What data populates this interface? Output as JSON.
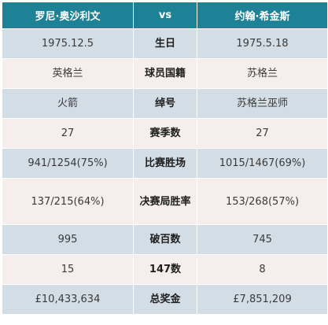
{
  "header": {
    "left": "罗尼·奥沙利文",
    "mid": "vs",
    "right": "约翰·希金斯"
  },
  "rows": [
    {
      "left": "1975.12.5",
      "label": "生日",
      "right": "1975.5.18"
    },
    {
      "left": "英格兰",
      "label": "球员国籍",
      "right": "苏格兰"
    },
    {
      "left": "火箭",
      "label": "绰号",
      "right": "苏格兰巫师"
    },
    {
      "left": "27",
      "label": "赛季数",
      "right": "27"
    },
    {
      "left": "941/1254(75%)",
      "label": "比赛胜场",
      "right": "1015/1467(69%)"
    },
    {
      "left": "137/215(64%)",
      "label": "决赛局胜率",
      "right": "153/268(57%)"
    },
    {
      "left": "995",
      "label": "破百数",
      "right": "745"
    },
    {
      "left": "15",
      "label": "147数",
      "right": "8"
    },
    {
      "left": "£10,433,634",
      "label": "总奖金",
      "right": "£7,851,209"
    }
  ],
  "colors": {
    "header_bg": "#1d8296",
    "row_odd_bg": "#d3dde6",
    "row_even_bg": "#f6eeec"
  }
}
